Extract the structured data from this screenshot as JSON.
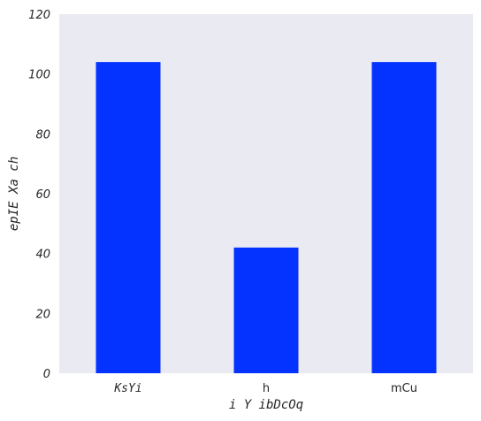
{
  "chart_data": {
    "type": "bar",
    "title": "",
    "xlabel": "i Y ibDcOq",
    "ylabel": "epIE Xa ch",
    "categories": [
      "KsYi",
      "h",
      "mCu"
    ],
    "values": [
      104,
      42,
      104
    ],
    "ylim": [
      0,
      120
    ],
    "yticks": [
      0,
      20,
      40,
      60,
      80,
      100,
      120
    ],
    "grid": false,
    "colors": {
      "bar": "#0433ff",
      "plot_background": "#eaeaf2"
    }
  }
}
